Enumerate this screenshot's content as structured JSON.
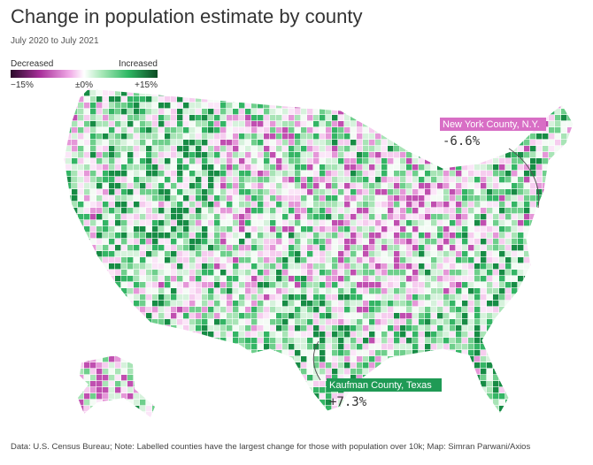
{
  "header": {
    "title": "Change in population estimate by county",
    "subtitle": "July 2020 to July 2021"
  },
  "legend": {
    "low_label": "Decreased",
    "high_label": "Increased",
    "ticks": [
      "−15%",
      "±0%",
      "+15%"
    ]
  },
  "annotations": [
    {
      "name": "New York County, N.Y.",
      "change": "-6.6%"
    },
    {
      "name": "Kaufman County, Texas",
      "change": "+7.3%"
    }
  ],
  "footer": {
    "source": "Data: U.S. Census Bureau; Note: Labelled counties have the largest change for those with population over 10k; Map: Simran Parwani/Axios"
  }
}
